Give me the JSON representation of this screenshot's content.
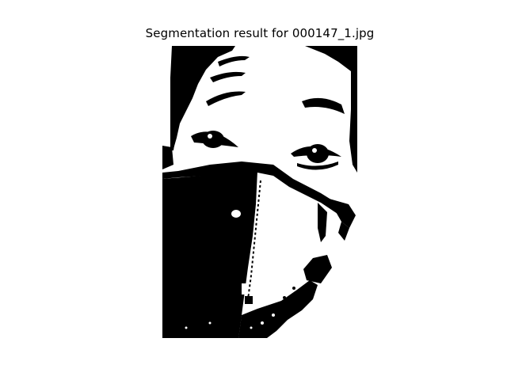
{
  "figure": {
    "title": "Segmentation result for 000147_1.jpg"
  },
  "image": {
    "description_kind": "binary segmentation mask",
    "foreground_color": "#000000",
    "background_color": "#ffffff"
  }
}
